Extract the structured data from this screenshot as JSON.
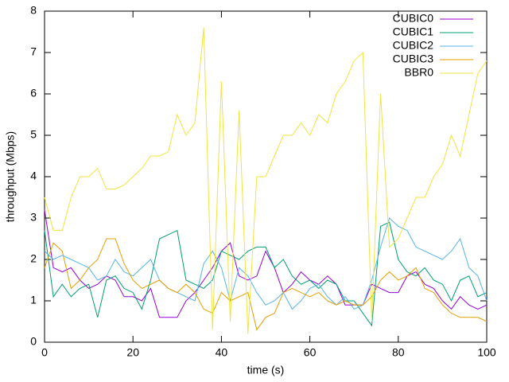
{
  "chart_data": {
    "type": "line",
    "xlabel": "time (s)",
    "ylabel": "throughput (Mbps)",
    "xlim": [
      0,
      100
    ],
    "ylim": [
      0,
      8
    ],
    "xticks": [
      0,
      20,
      40,
      60,
      80,
      100
    ],
    "yticks": [
      0,
      1,
      2,
      3,
      4,
      5,
      6,
      7,
      8
    ],
    "legend": "top-right",
    "x": [
      0,
      2,
      4,
      6,
      8,
      10,
      12,
      14,
      16,
      18,
      20,
      22,
      24,
      26,
      28,
      30,
      32,
      34,
      36,
      38,
      40,
      42,
      44,
      46,
      48,
      50,
      52,
      54,
      56,
      58,
      60,
      62,
      64,
      66,
      68,
      70,
      72,
      74,
      76,
      78,
      80,
      82,
      84,
      86,
      88,
      90,
      92,
      94,
      96,
      98,
      100
    ],
    "series": [
      {
        "name": "CUBIC0",
        "color": "#9400d3",
        "values": [
          3.2,
          1.8,
          1.7,
          1.8,
          1.5,
          1.3,
          1.4,
          1.6,
          1.5,
          1.1,
          1.1,
          1.0,
          1.3,
          0.6,
          0.6,
          0.6,
          1.0,
          1.2,
          1.5,
          1.8,
          2.2,
          2.4,
          1.6,
          1.5,
          1.6,
          2.2,
          1.8,
          1.2,
          1.4,
          1.7,
          1.5,
          1.4,
          1.6,
          1.4,
          0.9,
          0.9,
          0.9,
          1.4,
          1.3,
          1.2,
          1.2,
          1.6,
          1.7,
          1.4,
          1.3,
          1.0,
          0.8,
          1.1,
          0.9,
          0.8,
          0.9
        ]
      },
      {
        "name": "CUBIC1",
        "color": "#009e73",
        "values": [
          2.7,
          1.1,
          1.4,
          1.1,
          1.3,
          1.4,
          0.6,
          1.5,
          1.6,
          1.3,
          1.2,
          0.8,
          1.5,
          2.5,
          2.6,
          2.7,
          1.5,
          1.4,
          1.3,
          1.5,
          2.2,
          2.1,
          2.0,
          2.2,
          2.3,
          2.3,
          1.8,
          2.0,
          1.6,
          1.4,
          1.5,
          1.3,
          1.5,
          1.4,
          1.0,
          1.0,
          0.7,
          0.4,
          2.8,
          2.9,
          2.0,
          1.7,
          1.6,
          1.8,
          1.5,
          1.4,
          1.0,
          1.5,
          1.6,
          1.1,
          1.2
        ]
      },
      {
        "name": "CUBIC2",
        "color": "#56b4e9",
        "values": [
          2.2,
          2.0,
          2.1,
          2.0,
          1.9,
          1.8,
          1.5,
          1.6,
          2.0,
          1.7,
          1.6,
          1.8,
          2.0,
          1.5,
          1.3,
          1.2,
          1.1,
          1.0,
          1.9,
          2.2,
          1.8,
          1.0,
          1.8,
          1.6,
          1.2,
          0.9,
          1.0,
          1.2,
          0.8,
          1.0,
          1.3,
          1.4,
          1.1,
          0.9,
          1.1,
          0.8,
          0.9,
          1.5,
          2.3,
          3.0,
          2.8,
          2.7,
          2.3,
          2.2,
          2.1,
          2.0,
          2.2,
          2.5,
          1.8,
          1.6,
          1.0
        ]
      },
      {
        "name": "CUBIC3",
        "color": "#e69f00",
        "values": [
          1.8,
          2.4,
          2.2,
          1.3,
          1.5,
          1.8,
          2.0,
          2.5,
          2.5,
          1.9,
          1.5,
          1.3,
          1.4,
          1.5,
          1.3,
          1.2,
          1.4,
          1.2,
          0.8,
          0.7,
          1.2,
          1.0,
          1.1,
          1.2,
          0.3,
          0.6,
          0.7,
          1.2,
          1.3,
          1.2,
          1.1,
          1.2,
          1.0,
          0.9,
          1.0,
          0.9,
          0.9,
          1.1,
          1.5,
          1.7,
          1.5,
          1.6,
          1.8,
          1.3,
          1.2,
          0.9,
          0.7,
          0.6,
          0.6,
          0.6,
          0.5
        ]
      },
      {
        "name": "BBR0",
        "color": "#f0e442",
        "values": [
          3.5,
          2.7,
          2.7,
          3.5,
          4.0,
          4.0,
          4.2,
          3.7,
          3.7,
          3.8,
          4.0,
          4.2,
          4.5,
          4.5,
          4.6,
          5.5,
          5.0,
          5.3,
          7.6,
          0.3,
          6.3,
          0.5,
          5.6,
          0.2,
          4.0,
          4.0,
          4.5,
          5.0,
          5.0,
          5.3,
          5.0,
          5.5,
          5.3,
          6.0,
          6.3,
          6.8,
          7.0,
          0.5,
          6.0,
          2.3,
          2.5,
          3.0,
          3.5,
          3.5,
          4.0,
          4.3,
          5.0,
          4.5,
          5.5,
          6.5,
          6.8
        ]
      }
    ]
  }
}
